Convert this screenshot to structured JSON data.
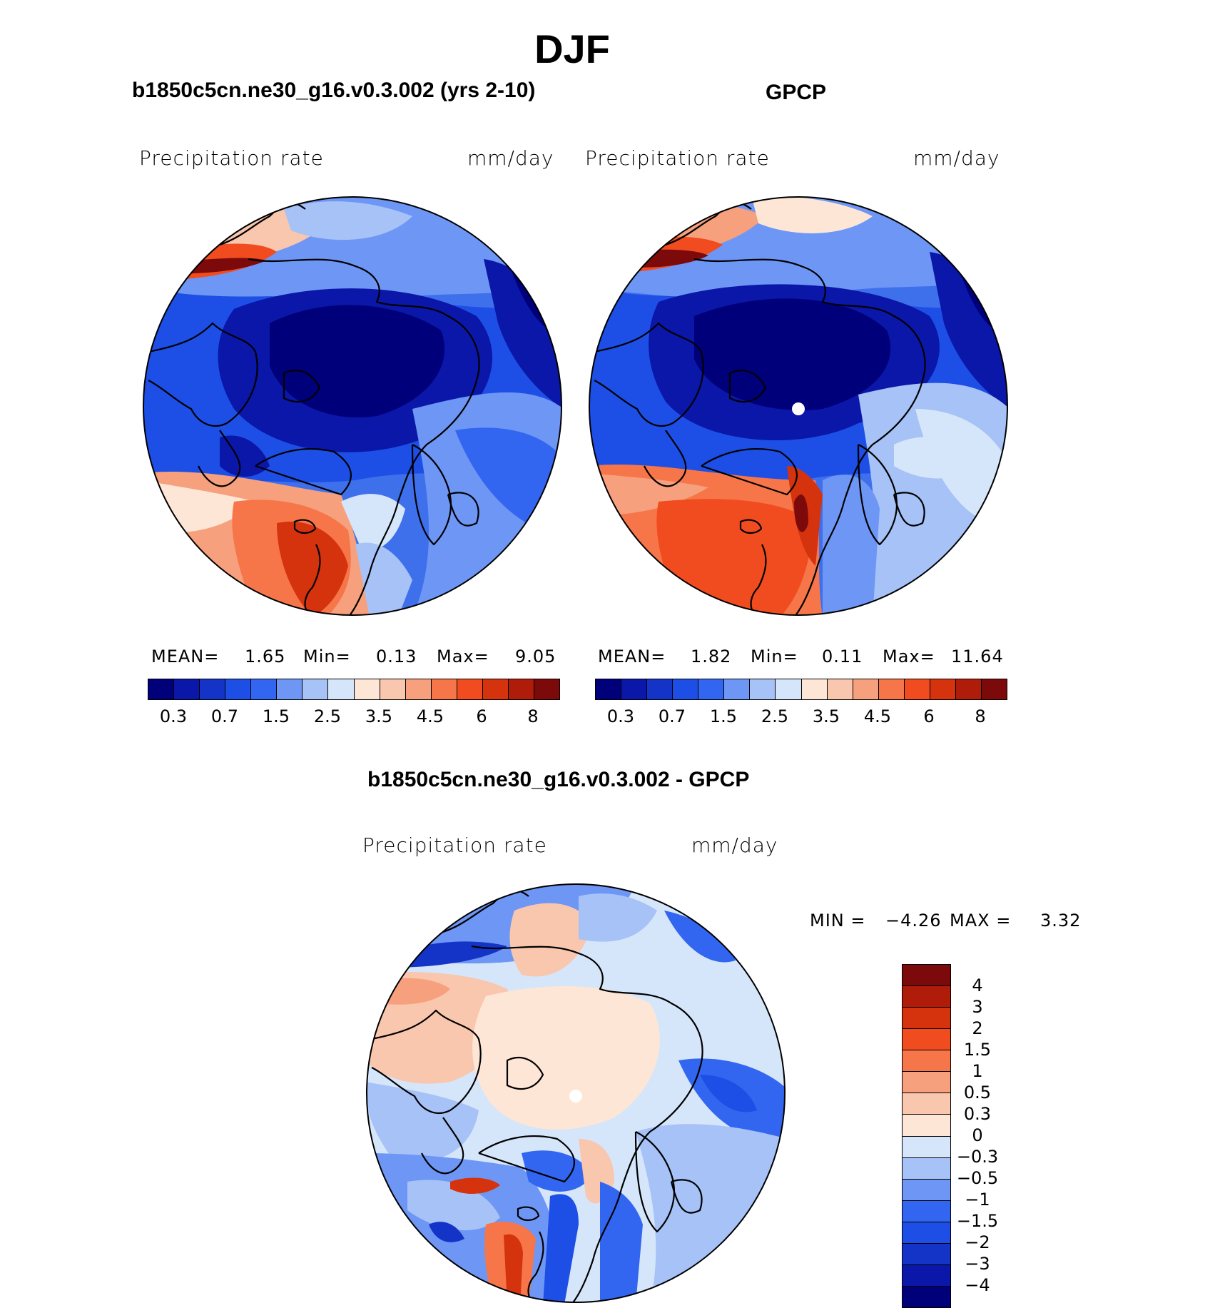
{
  "figure": {
    "title": "DJF"
  },
  "panels": {
    "model": {
      "title": "b1850c5cn.ne30_g16.v0.3.002 (yrs 2-10)",
      "left_label": "Precipitation  rate",
      "right_label": "mm/day",
      "stats": {
        "mean_label": "MEAN=",
        "mean_value": "1.65",
        "min_label": "Min=",
        "min_value": "0.13",
        "max_label": "Max=",
        "max_value": "9.05"
      }
    },
    "obs": {
      "title": "GPCP",
      "left_label": "Precipitation  rate",
      "right_label": "mm/day",
      "stats": {
        "mean_label": "MEAN=",
        "mean_value": "1.82",
        "min_label": "Min=",
        "min_value": "0.11",
        "max_label": "Max=",
        "max_value": "11.64"
      }
    },
    "diff": {
      "title": "b1850c5cn.ne30_g16.v0.3.002 - GPCP",
      "left_label": "Precipitation  rate",
      "right_label": "mm/day",
      "stats": {
        "min_label": "MIN  =",
        "min_value": "−4.26",
        "max_label": "MAX  =",
        "max_value": "3.32"
      }
    }
  },
  "colorbars": {
    "abs": {
      "colors": [
        "#00007a",
        "#0a17a8",
        "#1434c8",
        "#1d4fe6",
        "#3366f0",
        "#6e96f5",
        "#a6c2f6",
        "#d6e6fa",
        "#fde6d6",
        "#f9c6ae",
        "#f7a07d",
        "#f6764a",
        "#f04c1f",
        "#d4330e",
        "#b01c0a",
        "#7d0a0a"
      ],
      "tick_labels": [
        "0.3",
        "0.7",
        "1.5",
        "2.5",
        "3.5",
        "4.5",
        "6",
        "8"
      ]
    },
    "diff": {
      "colors": [
        "#00007a",
        "#0a17a8",
        "#1434c8",
        "#1d4fe6",
        "#3366f0",
        "#6e96f5",
        "#a6c2f6",
        "#d6e6fa",
        "#fde6d6",
        "#f9c6ae",
        "#f7a07d",
        "#f6764a",
        "#f04c1f",
        "#d4330e",
        "#b01c0a",
        "#7d0a0a"
      ],
      "tick_labels": [
        "4",
        "3",
        "2",
        "1.5",
        "1",
        "0.5",
        "0.3",
        "0",
        "−0.3",
        "−0.5",
        "−1",
        "−1.5",
        "−2",
        "−3",
        "−4"
      ]
    }
  }
}
